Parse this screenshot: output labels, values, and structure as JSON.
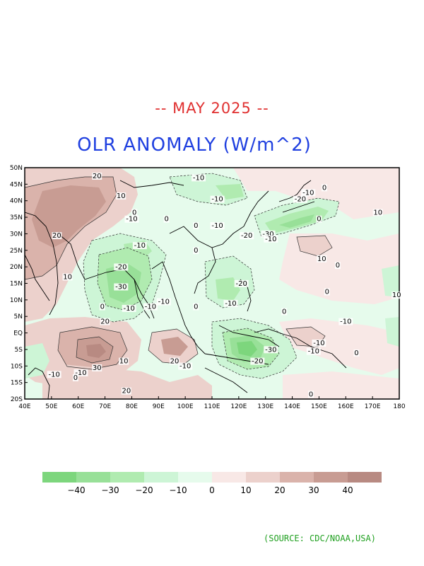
{
  "header": {
    "date_title": "-- MAY 2025 --",
    "date_color": "#e03030",
    "main_title": "OLR ANOMALY (W/m^2)",
    "main_color": "#2040e0"
  },
  "map": {
    "lat_labels": [
      "50N",
      "45N",
      "40N",
      "35N",
      "30N",
      "25N",
      "20N",
      "15N",
      "10N",
      "5N",
      "EQ",
      "5S",
      "10S",
      "15S",
      "20S"
    ],
    "lon_labels": [
      "40E",
      "50E",
      "60E",
      "70E",
      "80E",
      "90E",
      "100E",
      "110E",
      "120E",
      "130E",
      "140E",
      "150E",
      "160E",
      "170E",
      "180"
    ],
    "lon_range": [
      40,
      180
    ],
    "lat_range": [
      -20,
      50
    ],
    "contour_labels": [
      {
        "text": "20",
        "lon": 67,
        "lat": 47
      },
      {
        "text": "-10",
        "lon": 105,
        "lat": 46.5
      },
      {
        "text": "10",
        "lon": 76,
        "lat": 41
      },
      {
        "text": "-10",
        "lon": 112,
        "lat": 40
      },
      {
        "text": "-10",
        "lon": 146,
        "lat": 42
      },
      {
        "text": "0",
        "lon": 152,
        "lat": 43.5
      },
      {
        "text": "-20",
        "lon": 143,
        "lat": 40
      },
      {
        "text": "10",
        "lon": 172,
        "lat": 36
      },
      {
        "text": "0",
        "lon": 81,
        "lat": 36
      },
      {
        "text": "-10",
        "lon": 80,
        "lat": 34
      },
      {
        "text": "0",
        "lon": 93,
        "lat": 34
      },
      {
        "text": "0",
        "lon": 104,
        "lat": 32
      },
      {
        "text": "-10",
        "lon": 112,
        "lat": 32
      },
      {
        "text": "0",
        "lon": 150,
        "lat": 34
      },
      {
        "text": "20",
        "lon": 52,
        "lat": 29
      },
      {
        "text": "-20",
        "lon": 123,
        "lat": 29
      },
      {
        "text": "-30",
        "lon": 131,
        "lat": 29.5
      },
      {
        "text": "-10",
        "lon": 132,
        "lat": 28
      },
      {
        "text": "-10",
        "lon": 83,
        "lat": 26
      },
      {
        "text": "0",
        "lon": 104,
        "lat": 24.5
      },
      {
        "text": "10",
        "lon": 151,
        "lat": 22
      },
      {
        "text": "0",
        "lon": 157,
        "lat": 20
      },
      {
        "text": "-20",
        "lon": 76,
        "lat": 19.5
      },
      {
        "text": "10",
        "lon": 56,
        "lat": 16.5
      },
      {
        "text": "-30",
        "lon": 76,
        "lat": 13.5
      },
      {
        "text": "-20",
        "lon": 121,
        "lat": 14.5
      },
      {
        "text": "0",
        "lon": 153,
        "lat": 12
      },
      {
        "text": "10",
        "lon": 179,
        "lat": 11
      },
      {
        "text": "-10",
        "lon": 92,
        "lat": 9
      },
      {
        "text": "0",
        "lon": 69,
        "lat": 7.5
      },
      {
        "text": "-10",
        "lon": 79,
        "lat": 7
      },
      {
        "text": "-10",
        "lon": 87,
        "lat": 7.5
      },
      {
        "text": "-10",
        "lon": 117,
        "lat": 8.5
      },
      {
        "text": "0",
        "lon": 104,
        "lat": 7.5
      },
      {
        "text": "0",
        "lon": 137,
        "lat": 6
      },
      {
        "text": "-10",
        "lon": 160,
        "lat": 3
      },
      {
        "text": "20",
        "lon": 70,
        "lat": 3
      },
      {
        "text": "-10",
        "lon": 150,
        "lat": -3.5
      },
      {
        "text": "-30",
        "lon": 132,
        "lat": -5.5
      },
      {
        "text": "-10",
        "lon": 148,
        "lat": -6
      },
      {
        "text": "0",
        "lon": 164,
        "lat": -6.5
      },
      {
        "text": "-20",
        "lon": 127,
        "lat": -9
      },
      {
        "text": "10",
        "lon": 77,
        "lat": -9
      },
      {
        "text": "20",
        "lon": 96,
        "lat": -9
      },
      {
        "text": "-10",
        "lon": 100,
        "lat": -10.5
      },
      {
        "text": "30",
        "lon": 67,
        "lat": -11
      },
      {
        "text": "-10",
        "lon": 51,
        "lat": -13
      },
      {
        "text": "-10",
        "lon": 61,
        "lat": -12.5
      },
      {
        "text": "0",
        "lon": 59,
        "lat": -14
      },
      {
        "text": "20",
        "lon": 78,
        "lat": -18
      },
      {
        "text": "0",
        "lon": 147,
        "lat": -19
      }
    ]
  },
  "colorbar": {
    "colors": [
      "#7dd67d",
      "#98e098",
      "#b0ebb0",
      "#cdf5d6",
      "#e6fbec",
      "#f8e8e6",
      "#ecd1cc",
      "#dab3ab",
      "#c89c93",
      "#b88a82"
    ],
    "labels": [
      "-40",
      "-30",
      "-20",
      "-10",
      "0",
      "10",
      "20",
      "30",
      "40"
    ]
  },
  "footer": {
    "source": "(SOURCE: CDC/NOAA,USA)",
    "source_color": "#20a020"
  }
}
